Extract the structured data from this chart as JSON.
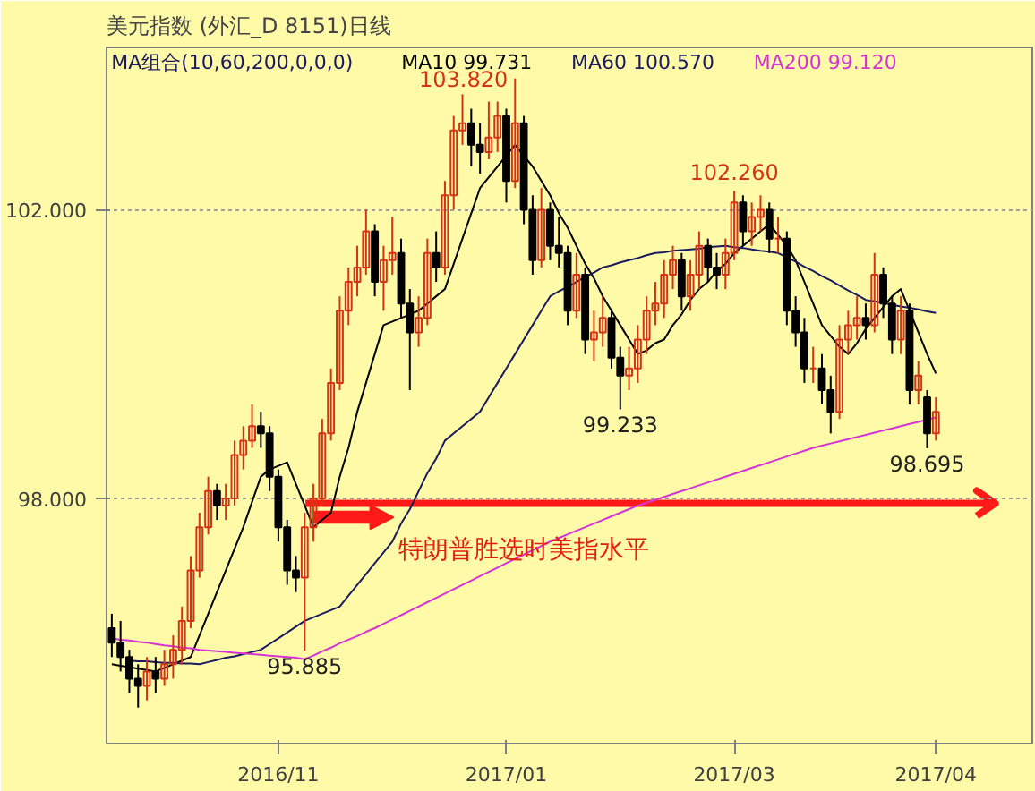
{
  "chart_data": {
    "type": "candlestick",
    "title": "美元指数 (外汇_D 8151)日线",
    "categories": [
      null,
      null,
      null,
      null,
      null,
      null,
      null,
      null,
      null,
      null,
      null,
      null,
      null,
      null,
      null,
      null,
      null,
      null,
      null,
      "2016/11",
      null,
      null,
      null,
      null,
      null,
      null,
      null,
      null,
      null,
      null,
      null,
      null,
      null,
      null,
      null,
      null,
      null,
      null,
      null,
      null,
      null,
      null,
      null,
      null,
      null,
      "2017/01",
      null,
      null,
      null,
      null,
      null,
      null,
      null,
      null,
      null,
      null,
      null,
      null,
      null,
      null,
      null,
      null,
      null,
      null,
      null,
      null,
      null,
      null,
      null,
      null,
      null,
      "2017/03",
      null,
      null,
      null,
      null,
      null,
      null,
      null,
      null,
      null,
      null,
      null,
      null,
      null,
      null,
      null,
      null,
      null,
      null,
      null,
      null,
      null,
      null,
      "2017/04"
    ],
    "ohlc": [
      [
        96.2,
        96.4,
        95.8,
        96.0
      ],
      [
        96.0,
        96.3,
        95.6,
        95.8
      ],
      [
        95.8,
        95.9,
        95.3,
        95.5
      ],
      [
        95.5,
        95.7,
        95.1,
        95.4
      ],
      [
        95.4,
        95.8,
        95.2,
        95.6
      ],
      [
        95.6,
        95.8,
        95.3,
        95.5
      ],
      [
        95.5,
        95.9,
        95.4,
        95.7
      ],
      [
        95.7,
        96.1,
        95.5,
        95.9
      ],
      [
        95.9,
        96.5,
        95.7,
        96.3
      ],
      [
        96.3,
        97.2,
        96.2,
        97.0
      ],
      [
        97.0,
        97.8,
        96.9,
        97.6
      ],
      [
        97.6,
        98.3,
        97.5,
        98.1
      ],
      [
        98.1,
        98.2,
        97.7,
        97.9
      ],
      [
        97.9,
        98.2,
        97.7,
        98.0
      ],
      [
        98.0,
        98.8,
        97.9,
        98.6
      ],
      [
        98.6,
        99.0,
        98.4,
        98.8
      ],
      [
        98.8,
        99.3,
        98.7,
        99.0
      ],
      [
        99.0,
        99.2,
        98.7,
        98.9
      ],
      [
        98.9,
        99.0,
        98.1,
        98.3
      ],
      [
        98.3,
        98.4,
        97.4,
        97.6
      ],
      [
        97.6,
        97.7,
        96.8,
        97.0
      ],
      [
        97.0,
        97.2,
        96.7,
        96.9
      ],
      [
        96.9,
        97.8,
        95.885,
        97.6
      ],
      [
        97.6,
        98.2,
        97.4,
        98.0
      ],
      [
        98.0,
        99.1,
        97.9,
        98.9
      ],
      [
        98.9,
        99.8,
        98.8,
        99.6
      ],
      [
        99.6,
        100.8,
        99.5,
        100.6
      ],
      [
        100.6,
        101.2,
        100.4,
        101.0
      ],
      [
        101.0,
        101.5,
        100.8,
        101.2
      ],
      [
        101.2,
        102.0,
        101.1,
        101.7
      ],
      [
        101.7,
        101.8,
        100.8,
        101.0
      ],
      [
        101.0,
        101.5,
        100.6,
        101.3
      ],
      [
        101.3,
        101.9,
        101.1,
        101.4
      ],
      [
        101.4,
        101.6,
        100.5,
        100.7
      ],
      [
        100.7,
        100.9,
        99.5,
        100.3
      ],
      [
        100.3,
        100.8,
        100.1,
        100.5
      ],
      [
        100.5,
        101.6,
        100.4,
        101.4
      ],
      [
        101.4,
        101.7,
        101.0,
        101.2
      ],
      [
        101.2,
        102.4,
        101.1,
        102.2
      ],
      [
        102.2,
        103.3,
        102.0,
        103.1
      ],
      [
        103.1,
        103.6,
        102.9,
        103.2
      ],
      [
        103.2,
        103.4,
        102.6,
        102.9
      ],
      [
        102.9,
        103.2,
        102.5,
        102.8
      ],
      [
        102.8,
        103.5,
        102.7,
        103.0
      ],
      [
        103.0,
        103.5,
        102.8,
        103.3
      ],
      [
        103.3,
        103.4,
        102.1,
        102.4
      ],
      [
        102.4,
        103.82,
        102.3,
        103.2
      ],
      [
        103.2,
        103.3,
        101.8,
        102.0
      ],
      [
        102.0,
        102.2,
        101.1,
        101.3
      ],
      [
        101.3,
        102.3,
        101.2,
        102.0
      ],
      [
        102.0,
        102.1,
        101.3,
        101.5
      ],
      [
        101.5,
        101.9,
        101.2,
        101.4
      ],
      [
        101.4,
        101.5,
        100.4,
        100.6
      ],
      [
        100.6,
        101.4,
        100.5,
        101.1
      ],
      [
        101.1,
        101.2,
        100.0,
        100.2
      ],
      [
        100.2,
        100.6,
        99.9,
        100.3
      ],
      [
        100.3,
        100.8,
        100.1,
        100.5
      ],
      [
        100.5,
        100.6,
        99.8,
        99.95
      ],
      [
        99.95,
        100.1,
        99.233,
        99.7
      ],
      [
        99.7,
        100.1,
        99.5,
        99.8
      ],
      [
        99.8,
        100.4,
        99.6,
        100.2
      ],
      [
        100.2,
        100.8,
        100.0,
        100.6
      ],
      [
        100.6,
        101.0,
        100.4,
        100.7
      ],
      [
        100.7,
        101.3,
        100.5,
        101.1
      ],
      [
        101.1,
        101.5,
        100.9,
        101.3
      ],
      [
        101.3,
        101.4,
        100.6,
        100.8
      ],
      [
        100.8,
        101.3,
        100.6,
        101.1
      ],
      [
        101.1,
        101.7,
        100.9,
        101.5
      ],
      [
        101.5,
        101.6,
        101.0,
        101.2
      ],
      [
        101.2,
        101.4,
        100.9,
        101.1
      ],
      [
        101.1,
        101.6,
        100.9,
        101.4
      ],
      [
        101.4,
        102.26,
        101.3,
        102.1
      ],
      [
        102.1,
        102.2,
        101.5,
        101.7
      ],
      [
        101.7,
        102.1,
        101.5,
        101.9
      ],
      [
        101.9,
        102.2,
        101.7,
        102.0
      ],
      [
        102.0,
        102.1,
        101.4,
        101.6
      ],
      [
        101.6,
        101.9,
        101.4,
        101.6
      ],
      [
        101.6,
        101.7,
        100.4,
        100.6
      ],
      [
        100.6,
        100.8,
        100.1,
        100.3
      ],
      [
        100.3,
        100.5,
        99.6,
        99.8
      ],
      [
        99.8,
        100.1,
        99.6,
        99.8
      ],
      [
        99.8,
        100.0,
        99.3,
        99.5
      ],
      [
        99.5,
        99.7,
        98.9,
        99.2
      ],
      [
        99.2,
        100.4,
        99.1,
        100.2
      ],
      [
        100.2,
        100.6,
        100.0,
        100.4
      ],
      [
        100.4,
        100.8,
        100.2,
        100.5
      ],
      [
        100.5,
        100.7,
        100.2,
        100.4
      ],
      [
        100.4,
        101.4,
        100.3,
        101.1
      ],
      [
        101.1,
        101.2,
        100.5,
        100.7
      ],
      [
        100.7,
        100.8,
        100.0,
        100.2
      ],
      [
        100.2,
        100.8,
        100.0,
        100.6
      ],
      [
        100.6,
        100.7,
        99.3,
        99.5
      ],
      [
        99.5,
        99.9,
        99.3,
        99.7
      ],
      [
        99.4,
        99.5,
        98.695,
        98.9
      ],
      [
        98.9,
        99.4,
        98.8,
        99.2
      ]
    ],
    "series": [
      {
        "name": "MA10 99.731",
        "type": "line",
        "color": "#000000",
        "values": [
          95.7,
          95.68,
          95.66,
          95.64,
          95.62,
          95.6,
          95.65,
          95.7,
          95.75,
          95.8,
          96.1,
          96.4,
          96.7,
          97.0,
          97.3,
          97.6,
          97.95,
          98.3,
          98.4,
          98.45,
          98.5,
          98.2,
          97.9,
          97.6,
          97.7,
          97.8,
          98.3,
          98.7,
          99.2,
          99.6,
          100.0,
          100.4,
          100.45,
          100.5,
          100.55,
          100.6,
          100.7,
          100.8,
          100.9,
          101.25,
          101.6,
          101.95,
          102.3,
          102.45,
          102.6,
          102.75,
          102.9,
          102.75,
          102.6,
          102.4,
          102.2,
          101.95,
          101.75,
          101.5,
          101.25,
          101.05,
          100.8,
          100.6,
          100.4,
          100.2,
          100.0,
          100.05,
          100.15,
          100.2,
          100.4,
          100.55,
          100.75,
          100.9,
          101.0,
          101.15,
          101.25,
          101.4,
          101.5,
          101.6,
          101.7,
          101.8,
          101.65,
          101.5,
          101.3,
          101.0,
          100.7,
          100.4,
          100.25,
          100.1,
          100.0,
          100.15,
          100.35,
          100.5,
          100.65,
          100.8,
          100.9,
          100.6,
          100.3,
          100.0,
          99.73
        ]
      },
      {
        "name": "MA60 100.570",
        "type": "line",
        "color": "#1a1a5e",
        "values": [
          null,
          null,
          95.75,
          95.74,
          95.74,
          95.73,
          95.72,
          95.72,
          95.71,
          95.71,
          95.7,
          95.73,
          95.76,
          95.79,
          95.81,
          95.84,
          95.87,
          95.9,
          95.98,
          96.06,
          96.14,
          96.22,
          96.3,
          96.35,
          96.4,
          96.45,
          96.5,
          96.65,
          96.8,
          96.95,
          97.1,
          97.25,
          97.4,
          97.65,
          97.85,
          98.1,
          98.35,
          98.55,
          98.8,
          98.9,
          99.0,
          99.1,
          99.2,
          99.4,
          99.6,
          99.8,
          100.0,
          100.2,
          100.4,
          100.6,
          100.8,
          100.87,
          100.93,
          101.0,
          101.07,
          101.13,
          101.2,
          101.23,
          101.27,
          101.3,
          101.33,
          101.37,
          101.4,
          101.41,
          101.43,
          101.44,
          101.45,
          101.46,
          101.48,
          101.49,
          101.5,
          101.48,
          101.47,
          101.45,
          101.43,
          101.42,
          101.4,
          101.34,
          101.28,
          101.21,
          101.15,
          101.08,
          101.02,
          100.95,
          100.88,
          100.82,
          100.75,
          100.73,
          100.71,
          100.68,
          100.66,
          100.64,
          100.62,
          100.59,
          100.57
        ]
      },
      {
        "name": "MA200 99.120",
        "type": "line",
        "color": "#d633d6",
        "values": [
          96.06,
          96.04,
          96.03,
          96.01,
          96.0,
          95.98,
          95.96,
          95.95,
          95.93,
          95.92,
          95.9,
          95.89,
          95.88,
          95.87,
          95.86,
          95.85,
          95.84,
          95.83,
          95.82,
          95.81,
          95.8,
          95.79,
          95.77,
          95.82,
          95.88,
          95.93,
          95.99,
          96.04,
          96.09,
          96.15,
          96.2,
          96.26,
          96.32,
          96.38,
          96.44,
          96.5,
          96.56,
          96.62,
          96.68,
          96.74,
          96.8,
          96.86,
          96.92,
          96.98,
          97.04,
          97.1,
          97.16,
          97.22,
          97.28,
          97.34,
          97.4,
          97.45,
          97.5,
          97.55,
          97.6,
          97.65,
          97.7,
          97.75,
          97.8,
          97.85,
          97.9,
          97.94,
          97.98,
          98.02,
          98.06,
          98.1,
          98.14,
          98.18,
          98.22,
          98.26,
          98.3,
          98.34,
          98.38,
          98.42,
          98.46,
          98.5,
          98.54,
          98.58,
          98.62,
          98.66,
          98.7,
          98.73,
          98.76,
          98.79,
          98.82,
          98.85,
          98.88,
          98.91,
          98.94,
          98.97,
          99.0,
          99.03,
          99.06,
          99.09,
          99.12
        ]
      }
    ],
    "ylim": [
      94.6,
      104.25
    ],
    "yticks": [
      {
        "value": 98,
        "label": "98.000"
      },
      {
        "value": 102,
        "label": "102.000"
      }
    ],
    "grid": "y",
    "legend": "top",
    "ref_lines": [
      {
        "axis": "y",
        "value": 97.93,
        "label": "特朗普胜选时美指水平",
        "color": "#ff1a1a"
      }
    ],
    "annotations": [
      "MA组合(10,60,200,0,0,0)",
      "103.820",
      {
        "text": "102.260",
        "y": 102.26
      },
      {
        "text": "99.233",
        "y": 99.233
      },
      {
        "text": "98.695",
        "y": 98.695
      },
      {
        "text": "95.885",
        "y": 95.885
      }
    ]
  }
}
